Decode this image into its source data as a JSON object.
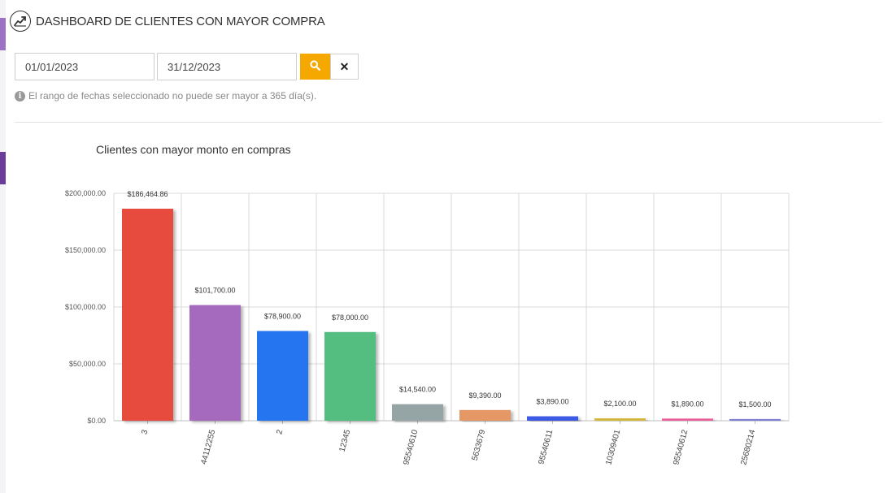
{
  "header": {
    "title": "DASHBOARD DE CLIENTES CON MAYOR COMPRA",
    "icon": "trending-up-icon"
  },
  "filters": {
    "date_from": "01/01/2023",
    "date_to": "31/12/2023",
    "search_icon": "search-icon",
    "clear_label": "✕",
    "hint": "El rango de fechas seleccionado no puede ser mayor a 365 día(s)."
  },
  "chart_data": {
    "type": "bar",
    "title": "Clientes con mayor monto en compras",
    "xlabel": "",
    "ylabel": "",
    "ylim": [
      0,
      200000
    ],
    "yticks": [
      0,
      50000,
      100000,
      150000,
      200000
    ],
    "ytick_labels": [
      "$0.00",
      "$50,000.00",
      "$100,000.00",
      "$150,000.00",
      "$200,000.00"
    ],
    "grid": true,
    "categories": [
      "3",
      "44112255",
      "2",
      "12345",
      "95540610",
      "5633679",
      "95540611",
      "10309401",
      "95540612",
      "25680214"
    ],
    "values": [
      186464.86,
      101700.0,
      78900.0,
      78000.0,
      14540.0,
      9390.0,
      3890.0,
      2100.0,
      1890.0,
      1500.0
    ],
    "value_labels": [
      "$186,464.86",
      "$101,700.00",
      "$78,900.00",
      "$78,000.00",
      "$14,540.00",
      "$9,390.00",
      "$3,890.00",
      "$2,100.00",
      "$1,890.00",
      "$1,500.00"
    ],
    "colors": [
      "#e74c3c",
      "#a569bd",
      "#2874f0",
      "#52be80",
      "#95a5a6",
      "#e59866",
      "#3d5ae6",
      "#d4b73c",
      "#ec5f9a",
      "#7f7fd5"
    ]
  }
}
